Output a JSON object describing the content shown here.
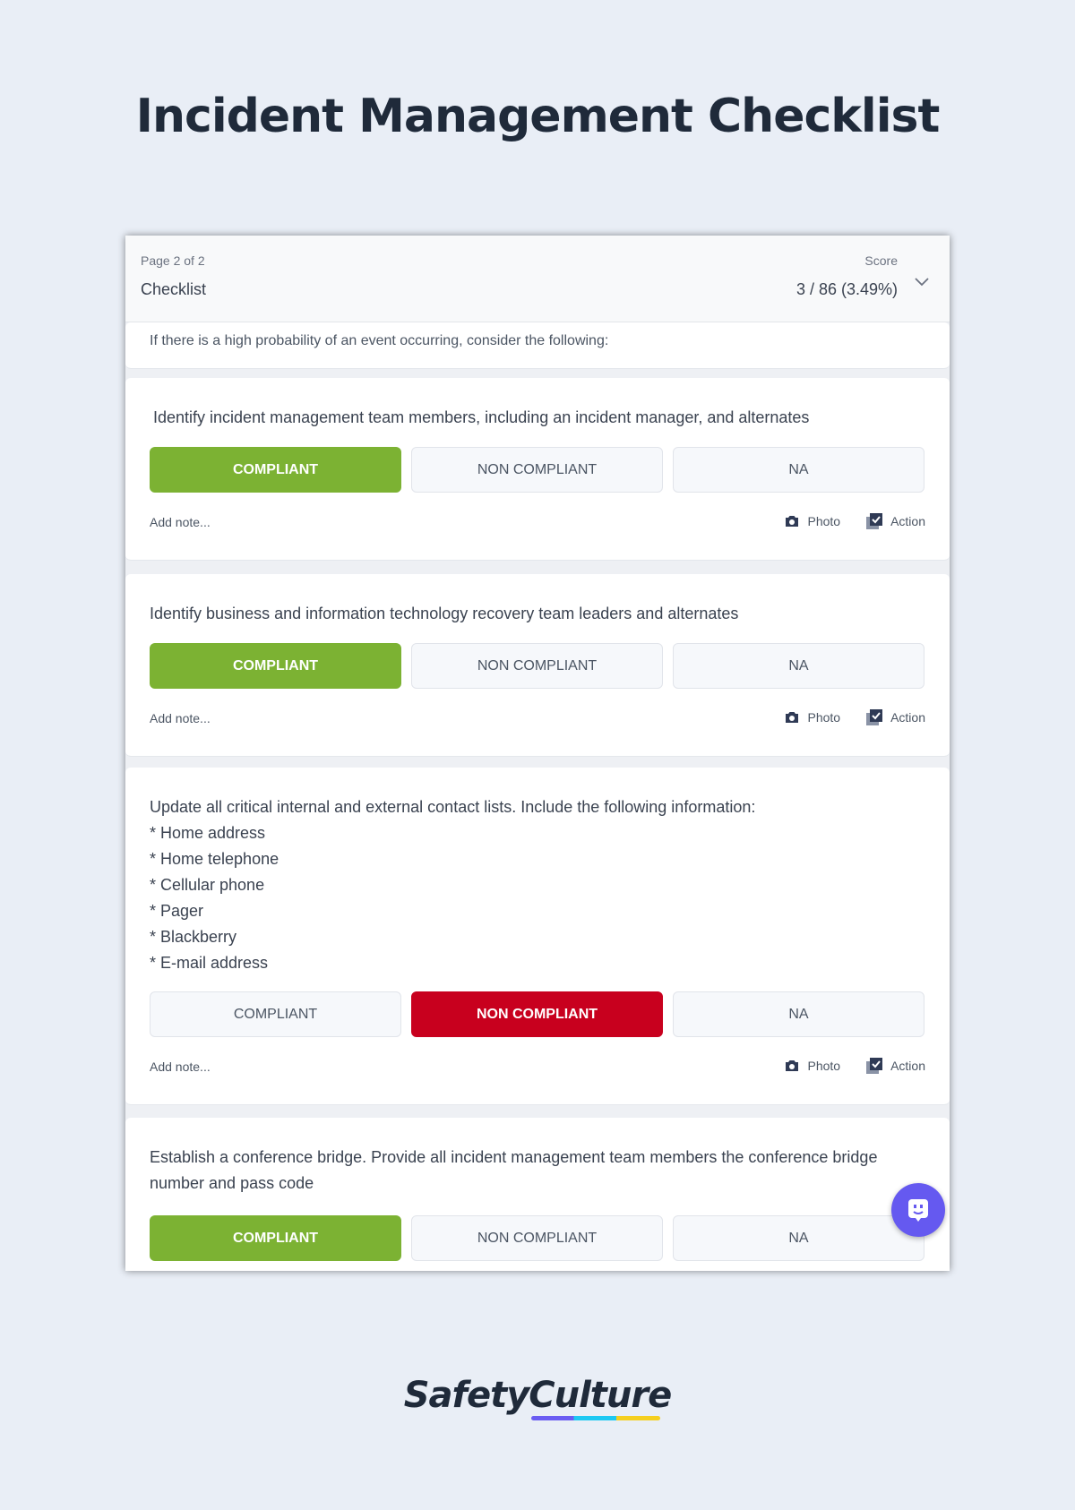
{
  "title": "Incident Management Checklist",
  "header": {
    "page": "Page 2 of 2",
    "section": "Checklist",
    "score_label": "Score",
    "score_value": "3 / 86 (3.49%)"
  },
  "intro": "If there is a high probability of an event occurring, consider the following:",
  "options": {
    "compliant": "COMPLIANT",
    "non_compliant": "NON COMPLIANT",
    "na": "NA"
  },
  "footer": {
    "add_note": "Add note...",
    "photo": "Photo",
    "action": "Action"
  },
  "items": [
    {
      "question": "Identify incident management team members, including an incident manager, and alternates",
      "selected": "COMPLIANT"
    },
    {
      "question": "Identify business and information technology recovery team leaders and alternates",
      "selected": "COMPLIANT"
    },
    {
      "question": "Update all critical internal and external contact lists. Include the following information:\n* Home address\n* Home telephone\n* Cellular phone\n* Pager\n* Blackberry\n* E-mail address",
      "selected": "NON COMPLIANT"
    },
    {
      "question": "Establish a conference bridge. Provide all incident management team members the conference bridge number and pass code",
      "selected": "COMPLIANT"
    }
  ],
  "colors": {
    "compliant": "#7cb233",
    "non_compliant": "#c8001e",
    "chat": "#6559f0"
  },
  "logo": "SafetyCulture"
}
